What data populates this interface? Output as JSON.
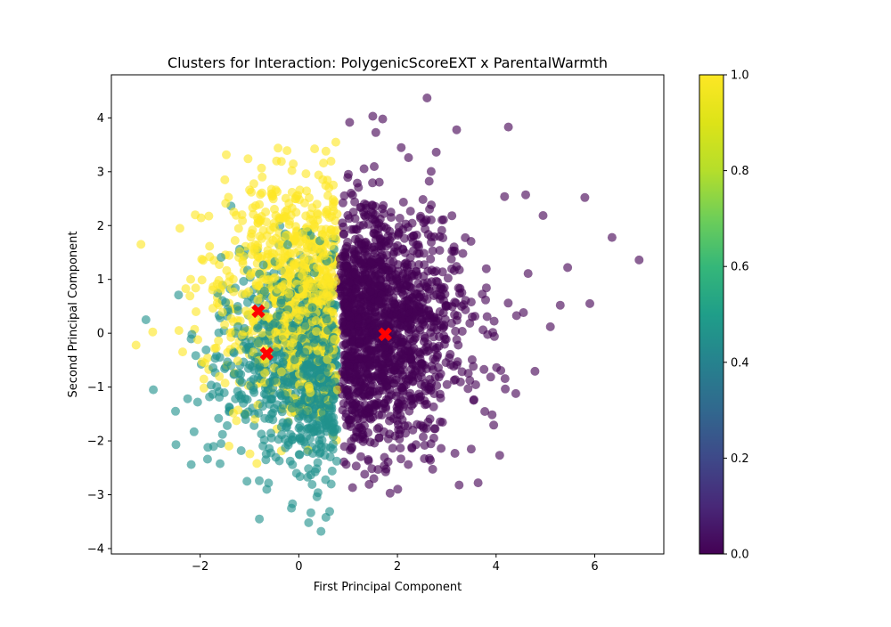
{
  "chart_data": {
    "type": "scatter",
    "title": "Clusters for Interaction: PolygenicScoreEXT x ParentalWarmth",
    "xlabel": "First Principal Component",
    "ylabel": "Second Principal Component",
    "xlim": [
      -3.8,
      7.4
    ],
    "ylim": [
      -4.1,
      4.8
    ],
    "x_ticks": [
      -2,
      0,
      2,
      4,
      6
    ],
    "y_ticks": [
      -4,
      -3,
      -2,
      -1,
      0,
      1,
      2,
      3,
      4
    ],
    "x_tick_labels": [
      "−2",
      "0",
      "2",
      "4",
      "6"
    ],
    "y_tick_labels": [
      "−4",
      "−3",
      "−2",
      "−1",
      "0",
      "1",
      "2",
      "3",
      "4"
    ],
    "grid": false,
    "colormap": "viridis",
    "colorbar": {
      "range": [
        0.0,
        1.0
      ],
      "ticks": [
        0.0,
        0.2,
        0.4,
        0.6,
        0.8,
        1.0
      ],
      "tick_labels": [
        "0.0",
        "0.2",
        "0.4",
        "0.6",
        "0.8",
        "1.0"
      ]
    },
    "clusters": [
      {
        "color_value": 0.0,
        "color": "#440154",
        "x_range": [
          0.8,
          6.9
        ],
        "y_range": [
          -2.95,
          4.4
        ],
        "highlighted_points": [
          [
            2.6,
            4.37
          ],
          [
            1.5,
            4.03
          ],
          [
            1.7,
            3.98
          ],
          [
            4.25,
            3.83
          ],
          [
            3.2,
            3.78
          ],
          [
            6.35,
            1.78
          ],
          [
            6.9,
            1.36
          ],
          [
            5.8,
            2.52
          ],
          [
            5.45,
            1.22
          ],
          [
            5.9,
            0.55
          ],
          [
            5.3,
            0.52
          ],
          [
            5.1,
            0.12
          ],
          [
            4.4,
            -1.12
          ],
          [
            3.25,
            -2.82
          ],
          [
            1.85,
            -2.97
          ]
        ]
      },
      {
        "color_value": 0.5,
        "color": "#21918c",
        "x_range": [
          -3.1,
          0.8
        ],
        "y_range": [
          -3.7,
          2.6
        ],
        "highlighted_points": [
          [
            0.45,
            -3.68
          ],
          [
            0.2,
            -3.52
          ],
          [
            -0.8,
            -3.45
          ],
          [
            0.55,
            -3.42
          ],
          [
            -0.15,
            -3.25
          ],
          [
            -0.65,
            -2.9
          ],
          [
            -1.05,
            -2.75
          ],
          [
            -2.5,
            -1.45
          ],
          [
            -2.95,
            -1.05
          ],
          [
            -3.1,
            0.25
          ]
        ]
      },
      {
        "color_value": 1.0,
        "color": "#fde725",
        "x_range": [
          -3.3,
          0.8
        ],
        "y_range": [
          -2.4,
          3.55
        ],
        "highlighted_points": [
          [
            0.75,
            3.55
          ],
          [
            0.55,
            3.38
          ],
          [
            -0.45,
            3.2
          ],
          [
            -3.2,
            1.65
          ],
          [
            -3.3,
            -0.22
          ],
          [
            -2.1,
            2.2
          ],
          [
            -1.5,
            2.85
          ],
          [
            -0.85,
            -2.42
          ]
        ]
      }
    ],
    "centroids": [
      {
        "x": 1.75,
        "y": -0.02,
        "marker": "X",
        "color": "#ff0000"
      },
      {
        "x": -0.82,
        "y": 0.41,
        "marker": "X",
        "color": "#ff0000"
      },
      {
        "x": -0.65,
        "y": -0.38,
        "marker": "X",
        "color": "#ff0000"
      }
    ]
  }
}
